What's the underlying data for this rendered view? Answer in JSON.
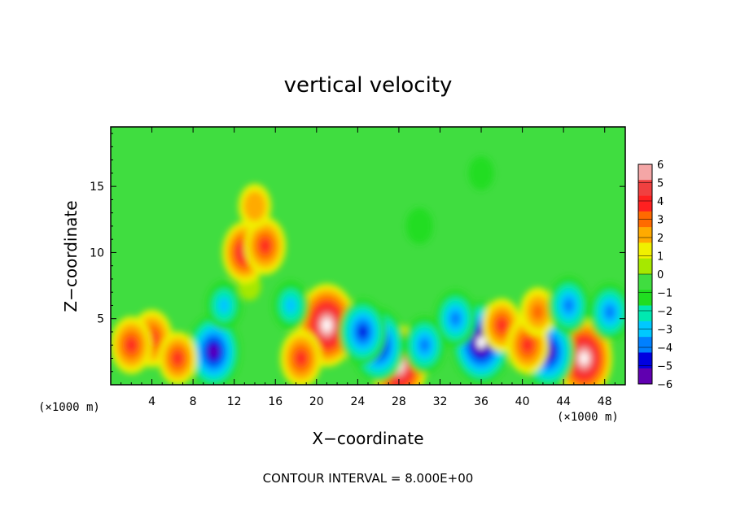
{
  "chart_data": {
    "type": "heatmap",
    "title": "vertical velocity",
    "xlabel": "X−coordinate",
    "ylabel": "Z−coordinate",
    "x_unit_left": "(×1000 m)",
    "x_unit_right": "(×1000 m)",
    "xlim": [
      0,
      50
    ],
    "ylim": [
      0,
      19.5
    ],
    "x_ticks": [
      4,
      8,
      12,
      16,
      20,
      24,
      28,
      32,
      36,
      40,
      44,
      48
    ],
    "x_tick_labels": [
      "4",
      "8",
      "12",
      "16",
      "20",
      "24",
      "28",
      "32",
      "36",
      "40",
      "44",
      "48"
    ],
    "y_ticks": [
      5,
      10,
      15
    ],
    "y_tick_labels": [
      "5",
      "10",
      "15"
    ],
    "footer": "CONTOUR INTERVAL = 8.000E+00",
    "colorbar": {
      "min": -6,
      "max": 6,
      "labels": [
        "6",
        "5",
        "4",
        "3",
        "2",
        "1",
        "0",
        "−1",
        "−2",
        "−3",
        "−4",
        "−5",
        "−6"
      ],
      "colors": [
        "#f4a6a6",
        "#f04040",
        "#ff2020",
        "#ff6a00",
        "#ffaa00",
        "#f0f000",
        "#a6e800",
        "#40dd40",
        "#20dd20",
        "#00e8b0",
        "#00c8ff",
        "#0080ff",
        "#0000e0",
        "#6000b0"
      ]
    },
    "features": [
      {
        "x": 13.5,
        "z": 7.5,
        "w": 0.7
      },
      {
        "x": 13.0,
        "z": 10.0,
        "w": 4.5
      },
      {
        "x": 15.0,
        "z": 10.5,
        "w": 4.0
      },
      {
        "x": 14.0,
        "z": 13.5,
        "w": 2.5
      },
      {
        "x": 21.0,
        "z": 4.5,
        "w": 7.0
      },
      {
        "x": 28.0,
        "z": 1.5,
        "w": 6.5
      },
      {
        "x": 36.0,
        "z": 3.2,
        "w": -7.0
      },
      {
        "x": 46.0,
        "z": 2.0,
        "w": 6.5
      },
      {
        "x": 42.5,
        "z": 2.5,
        "w": -6.0
      },
      {
        "x": 26.0,
        "z": 3.0,
        "w": -6.0
      },
      {
        "x": 10.0,
        "z": 2.5,
        "w": -6.0
      },
      {
        "x": 4.0,
        "z": 3.5,
        "w": 4.0
      },
      {
        "x": 2.0,
        "z": 3.0,
        "w": 4.0
      },
      {
        "x": 6.5,
        "z": 2.0,
        "w": 3.5
      },
      {
        "x": 11.0,
        "z": 6.0,
        "w": -3.0
      },
      {
        "x": 17.5,
        "z": 6.0,
        "w": -3.0
      },
      {
        "x": 24.5,
        "z": 4.0,
        "w": -5.0
      },
      {
        "x": 18.5,
        "z": 2.0,
        "w": 4.0
      },
      {
        "x": 30.5,
        "z": 3.0,
        "w": -4.0
      },
      {
        "x": 33.5,
        "z": 5.0,
        "w": -4.0
      },
      {
        "x": 38.0,
        "z": 4.5,
        "w": 3.5
      },
      {
        "x": 40.5,
        "z": 3.0,
        "w": 4.0
      },
      {
        "x": 41.5,
        "z": 5.5,
        "w": 3.0
      },
      {
        "x": 44.5,
        "z": 6.0,
        "w": -4.0
      },
      {
        "x": 48.5,
        "z": 5.5,
        "w": -4.0
      },
      {
        "x": 30.0,
        "z": 12.0,
        "w": -1.5
      },
      {
        "x": 36.0,
        "z": 16.0,
        "w": -1.2
      }
    ]
  }
}
